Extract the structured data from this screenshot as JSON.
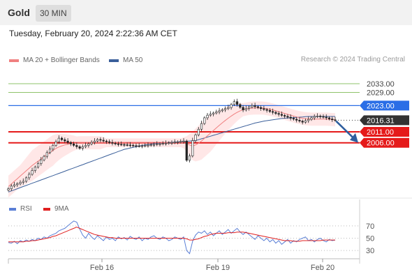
{
  "header": {
    "asset": "Gold",
    "timeframe": "30 MIN",
    "datetime": "Tuesday, February 20, 2024 2:22:36 AM CET"
  },
  "legend": {
    "items": [
      {
        "label": "MA 20 + Bollinger Bands",
        "color": "#f08080"
      },
      {
        "label": "MA 50",
        "color": "#3a5f9a"
      }
    ],
    "credit": "Research © 2024 Trading Central"
  },
  "rsi_legend": {
    "items": [
      {
        "label": "RSI",
        "color": "#5a7fd6"
      },
      {
        "label": "9MA",
        "color": "#e02020"
      }
    ]
  },
  "chart_data": [
    {
      "type": "candlestick",
      "ylim": [
        1982,
        2040
      ],
      "levels": [
        {
          "value": 2033.0,
          "label": "2033.00",
          "color": "#8ec36a",
          "kind": "target"
        },
        {
          "value": 2029.0,
          "label": "2029.00",
          "color": "#8ec36a",
          "kind": "target"
        },
        {
          "value": 2023.0,
          "label": "2023.00",
          "color": "#2a6ee6",
          "kind": "pivot"
        },
        {
          "value": 2016.31,
          "label": "2016.31",
          "color": "#333333",
          "kind": "last"
        },
        {
          "value": 2011.0,
          "label": "2011.00",
          "color": "#e51a1a",
          "kind": "support"
        },
        {
          "value": 2006.0,
          "label": "2006.00",
          "color": "#e51a1a",
          "kind": "support"
        }
      ],
      "last_price": 2016.31,
      "x_ticks": [
        "Feb 16",
        "Feb 19",
        "Feb 20"
      ],
      "close": [
        1985.0,
        1986.2,
        1986.8,
        1987.3,
        1987.9,
        1988.4,
        1990.0,
        1991.6,
        1993.3,
        1994.9,
        1996.5,
        1998.2,
        1999.8,
        2001.5,
        2003.1,
        2004.8,
        2006.4,
        2008.1,
        2007.4,
        2006.8,
        2006.1,
        2005.5,
        2004.8,
        2004.2,
        2003.5,
        2004.2,
        2004.8,
        2005.5,
        2006.2,
        2006.8,
        2007.5,
        2007.2,
        2006.8,
        2006.5,
        2006.1,
        2005.8,
        2005.5,
        2005.3,
        2005.2,
        2005.1,
        2005.0,
        2004.9,
        2004.7,
        2004.6,
        2004.5,
        2004.6,
        2004.8,
        2004.9,
        2005.1,
        2005.2,
        2005.4,
        2005.5,
        2005.7,
        2005.8,
        2006.0,
        2006.1,
        2006.3,
        2006.4,
        2006.6,
        2006.8,
        1998.0,
        2000.0,
        2007.0,
        2009.6,
        2012.2,
        2014.8,
        2017.4,
        2018.6,
        2019.1,
        2019.6,
        2020.1,
        2020.6,
        2021.1,
        2021.6,
        2022.1,
        2023.5,
        2024.8,
        2023.5,
        2022.2,
        2021.0,
        2021.7,
        2022.4,
        2023.0,
        2022.5,
        2022.1,
        2021.6,
        2021.2,
        2020.8,
        2020.3,
        2019.9,
        2019.4,
        2019.0,
        2018.5,
        2018.1,
        2017.7,
        2017.2,
        2016.8,
        2016.3,
        2015.9,
        2015.4,
        2016.1,
        2016.7,
        2017.4,
        2018.0,
        2018.2,
        2018.0,
        2017.7,
        2017.4,
        2016.9,
        2016.5,
        2016.3
      ],
      "ma20": [
        1986.0,
        1987.2,
        1988.4,
        1989.6,
        1990.8,
        1992.0,
        1993.2,
        1994.4,
        1995.6,
        1996.6,
        1997.6,
        1998.6,
        1999.6,
        2000.6,
        2001.6,
        2002.5,
        2003.4,
        2004.1,
        2004.6,
        2005.0,
        2005.3,
        2005.6,
        2005.8,
        2005.9,
        2006.0,
        2006.0,
        2006.0,
        2006.0,
        2006.0,
        2006.0,
        2006.0,
        2006.0,
        2006.0,
        2006.0,
        2006.0,
        2006.0,
        2006.0,
        2006.0,
        2006.0,
        2006.0,
        2006.0,
        2006.0,
        2006.0,
        2006.0,
        2006.0,
        2006.0,
        2006.0,
        2006.0,
        2006.0,
        2006.0,
        2006.0,
        2006.0,
        2006.0,
        2006.0,
        2006.0,
        2006.0,
        2006.0,
        2006.0,
        2006.0,
        2006.0,
        2005.5,
        2005.0,
        2004.5,
        2005.0,
        2005.8,
        2006.8,
        2008.0,
        2009.2,
        2010.4,
        2011.6,
        2012.8,
        2014.0,
        2015.1,
        2016.2,
        2017.2,
        2018.2,
        2019.1,
        2019.9,
        2020.6,
        2021.1,
        2021.4,
        2021.7,
        2021.8,
        2021.9,
        2021.9,
        2021.9,
        2021.8,
        2021.6,
        2021.3,
        2021.0,
        2020.6,
        2020.2,
        2019.8,
        2019.4,
        2019.0,
        2018.6,
        2018.2,
        2017.8,
        2017.5,
        2017.2,
        2017.0,
        2016.9,
        2016.8,
        2016.8,
        2016.8,
        2016.8,
        2016.8,
        2016.8,
        2016.7,
        2016.6,
        2016.5
      ],
      "ma50": [
        1983.5,
        1984.0,
        1984.5,
        1985.0,
        1985.5,
        1986.0,
        1986.5,
        1987.0,
        1987.5,
        1988.0,
        1988.5,
        1989.0,
        1989.5,
        1990.0,
        1990.5,
        1991.0,
        1991.5,
        1992.0,
        1992.5,
        1993.0,
        1993.5,
        1994.0,
        1994.5,
        1995.0,
        1995.5,
        1996.0,
        1996.5,
        1997.0,
        1997.5,
        1998.0,
        1998.5,
        1999.0,
        1999.5,
        2000.0,
        2000.5,
        2001.0,
        2001.5,
        2002.0,
        2002.5,
        2003.0,
        2003.3,
        2003.6,
        2003.9,
        2004.2,
        2004.5,
        2004.8,
        2005.0,
        2005.2,
        2005.4,
        2005.6,
        2005.7,
        2005.8,
        2005.9,
        2006.0,
        2006.1,
        2006.2,
        2006.3,
        2006.4,
        2006.5,
        2006.6,
        2006.7,
        2006.8,
        2006.9,
        2007.0,
        2007.4,
        2007.8,
        2008.2,
        2008.6,
        2009.0,
        2009.4,
        2009.8,
        2010.2,
        2010.6,
        2011.0,
        2011.4,
        2011.8,
        2012.2,
        2012.6,
        2013.0,
        2013.4,
        2013.8,
        2014.2,
        2014.6,
        2015.0,
        2015.3,
        2015.6,
        2015.9,
        2016.1,
        2016.3,
        2016.5,
        2016.7,
        2016.9,
        2017.1,
        2017.2,
        2017.3,
        2017.4,
        2017.5,
        2017.6,
        2017.7,
        2017.8,
        2017.9,
        2018.0,
        2018.0,
        2018.0,
        2018.0,
        2018.0,
        2018.0,
        2018.0,
        2018.0,
        2018.0,
        2018.0
      ],
      "bb_width": [
        5.0,
        5.0,
        5.0,
        5.0,
        5.0,
        5.5,
        6.0,
        6.5,
        7.0,
        7.0,
        7.0,
        7.0,
        7.0,
        7.0,
        7.0,
        7.0,
        6.5,
        6.0,
        5.5,
        5.0,
        4.5,
        4.0,
        3.5,
        3.0,
        3.0,
        3.0,
        3.0,
        3.0,
        3.0,
        3.0,
        3.0,
        3.0,
        2.5,
        2.0,
        2.0,
        2.0,
        2.0,
        2.0,
        2.0,
        2.0,
        2.0,
        2.0,
        2.0,
        2.0,
        2.0,
        2.0,
        2.0,
        2.0,
        2.0,
        2.0,
        2.0,
        2.0,
        2.0,
        2.0,
        2.0,
        2.0,
        2.0,
        2.0,
        2.0,
        2.5,
        3.5,
        5.0,
        6.5,
        7.5,
        8.0,
        8.5,
        8.5,
        8.5,
        8.5,
        8.0,
        7.5,
        7.0,
        6.5,
        6.0,
        5.5,
        5.0,
        4.5,
        4.0,
        3.5,
        3.0,
        3.0,
        3.0,
        3.0,
        3.0,
        3.0,
        3.0,
        3.0,
        3.0,
        3.0,
        3.0,
        3.0,
        3.0,
        3.0,
        3.0,
        3.0,
        3.0,
        3.0,
        3.0,
        3.0,
        3.0,
        3.0,
        3.0,
        3.0,
        3.0,
        3.0,
        3.0,
        3.0,
        3.0,
        3.0,
        3.0,
        3.0
      ],
      "projection": {
        "from": 2016.31,
        "to": 2006.0
      }
    },
    {
      "type": "line",
      "ylim": [
        20,
        80
      ],
      "y_ticks": [
        70,
        50,
        30
      ],
      "series": [
        {
          "name": "RSI",
          "color": "#5a7fd6",
          "values": [
            43,
            42,
            45,
            41,
            46,
            44,
            47,
            45,
            48,
            46,
            50,
            48,
            52,
            50,
            54,
            56,
            58,
            62,
            64,
            66,
            70,
            74,
            78,
            76,
            65,
            55,
            50,
            58,
            52,
            48,
            54,
            50,
            46,
            52,
            48,
            50,
            46,
            52,
            49,
            51,
            47,
            53,
            50,
            48,
            52,
            46,
            50,
            48,
            52,
            54,
            50,
            48,
            52,
            50,
            46,
            48,
            52,
            50,
            48,
            52,
            30,
            25,
            45,
            55,
            60,
            58,
            62,
            56,
            60,
            54,
            58,
            62,
            56,
            60,
            64,
            58,
            62,
            66,
            60,
            56,
            60,
            56,
            52,
            48,
            54,
            50,
            46,
            50,
            44,
            48,
            42,
            46,
            40,
            44,
            48,
            42,
            46,
            44,
            48,
            50,
            52,
            46,
            48,
            44,
            48,
            50,
            46,
            44,
            48,
            46,
            47
          ]
        },
        {
          "name": "9MA",
          "color": "#e02020",
          "values": [
            44,
            44,
            44,
            44,
            44,
            44,
            45,
            45,
            46,
            46,
            47,
            48,
            49,
            50,
            51,
            53,
            54,
            56,
            58,
            60,
            62,
            64,
            66,
            68,
            66,
            64,
            62,
            60,
            58,
            56,
            55,
            54,
            53,
            52,
            51,
            51,
            50,
            50,
            50,
            50,
            50,
            50,
            50,
            50,
            50,
            50,
            50,
            50,
            50,
            50,
            50,
            50,
            50,
            50,
            50,
            50,
            50,
            50,
            50,
            50,
            49,
            47,
            47,
            48,
            49,
            51,
            53,
            54,
            56,
            57,
            58,
            58,
            58,
            58,
            59,
            59,
            59,
            60,
            60,
            60,
            59,
            58,
            57,
            56,
            55,
            54,
            53,
            52,
            51,
            50,
            49,
            48,
            47,
            46,
            46,
            46,
            45,
            45,
            45,
            46,
            46,
            46,
            46,
            46,
            46,
            46,
            47,
            47,
            47,
            47,
            47
          ]
        }
      ]
    }
  ]
}
